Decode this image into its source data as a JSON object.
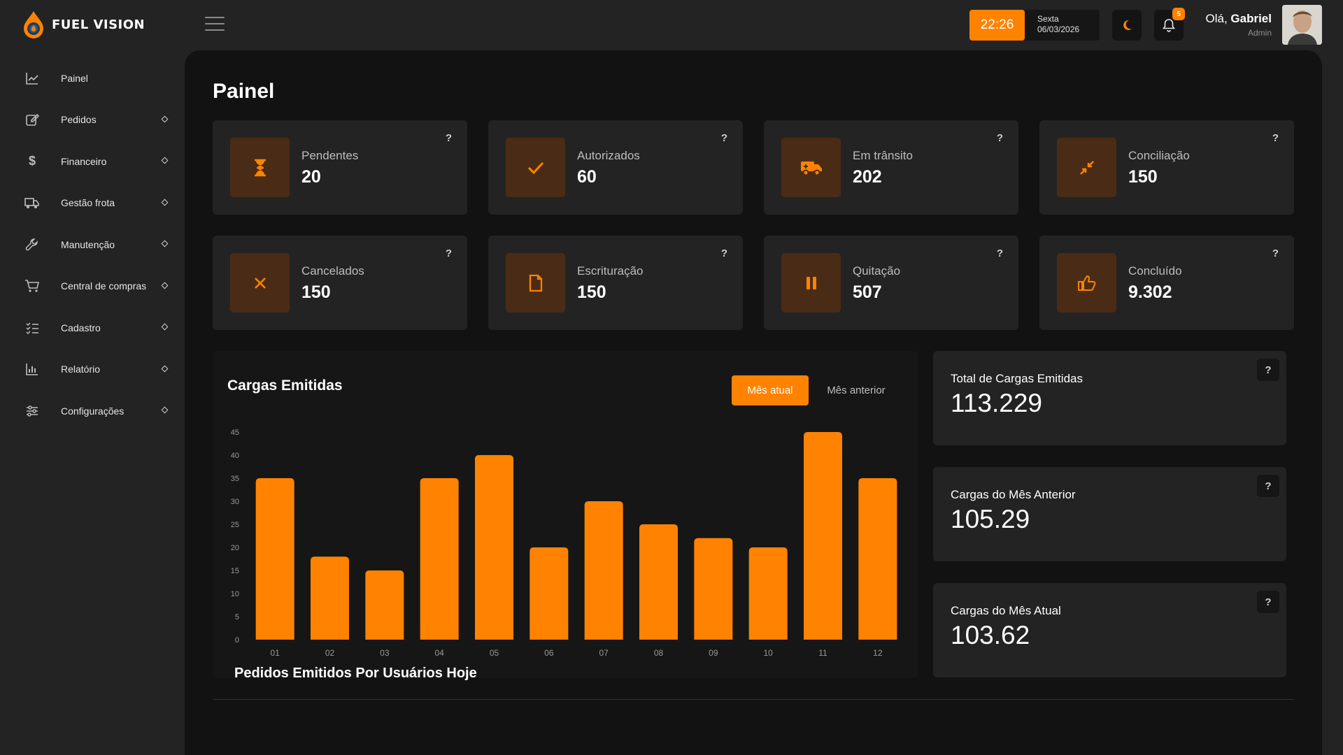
{
  "brand": {
    "name": "FUEL VISION"
  },
  "header": {
    "time": "22:26",
    "weekday": "Sexta",
    "date": "06/03/2026",
    "notifications_count": "5",
    "greeting": "Olá,",
    "user_name": "Gabriel",
    "user_role": "Admin"
  },
  "sidebar": {
    "items": [
      {
        "label": "Painel",
        "icon": "chart-line-icon"
      },
      {
        "label": "Pedidos",
        "icon": "edit-icon"
      },
      {
        "label": "Financeiro",
        "icon": "dollar-icon"
      },
      {
        "label": "Gestão frota",
        "icon": "truck-icon"
      },
      {
        "label": "Manutenção",
        "icon": "wrench-icon"
      },
      {
        "label": "Central de compras",
        "icon": "cart-icon"
      },
      {
        "label": "Cadastro",
        "icon": "checklist-icon"
      },
      {
        "label": "Relatório",
        "icon": "bar-chart-icon"
      },
      {
        "label": "Configurações",
        "icon": "sliders-icon"
      }
    ]
  },
  "page": {
    "title": "Painel"
  },
  "stats": [
    {
      "label": "Pendentes",
      "value": "20",
      "icon": "hourglass-icon"
    },
    {
      "label": "Autorizados",
      "value": "60",
      "icon": "check-icon"
    },
    {
      "label": "Em trânsito",
      "value": "202",
      "icon": "truck-moving-icon"
    },
    {
      "label": "Conciliação",
      "value": "150",
      "icon": "compress-icon"
    },
    {
      "label": "Cancelados",
      "value": "150",
      "icon": "close-icon"
    },
    {
      "label": "Escrituração",
      "value": "150",
      "icon": "document-icon"
    },
    {
      "label": "Quitação",
      "value": "507",
      "icon": "pause-icon"
    },
    {
      "label": "Concluído",
      "value": "9.302",
      "icon": "thumbs-up-icon"
    }
  ],
  "help_symbol": "?",
  "chart": {
    "title": "Cargas Emitidas",
    "tab_current": "Mês atual",
    "tab_previous": "Mês anterior"
  },
  "chart_data": {
    "type": "bar",
    "categories": [
      "01",
      "02",
      "03",
      "04",
      "05",
      "06",
      "07",
      "08",
      "09",
      "10",
      "11",
      "12"
    ],
    "values": [
      35,
      18,
      15,
      35,
      40,
      20,
      30,
      25,
      22,
      20,
      45,
      35
    ],
    "ylim": [
      0,
      45
    ],
    "yticks": [
      0,
      5,
      10,
      15,
      20,
      25,
      30,
      35,
      40,
      45
    ],
    "grid": false,
    "color": "#ff8300"
  },
  "summary": [
    {
      "label": "Total de Cargas Emitidas",
      "value": "113.229"
    },
    {
      "label": "Cargas do Mês Anterior",
      "value": "105.29"
    },
    {
      "label": "Cargas do Mês Atual",
      "value": "103.62"
    }
  ],
  "section": {
    "title": "Pedidos Emitidos Por Usuários Hoje"
  },
  "colors": {
    "accent": "#ff8300",
    "background": "#232323",
    "panel": "#121212",
    "icon_bg": "#4a2c16"
  }
}
